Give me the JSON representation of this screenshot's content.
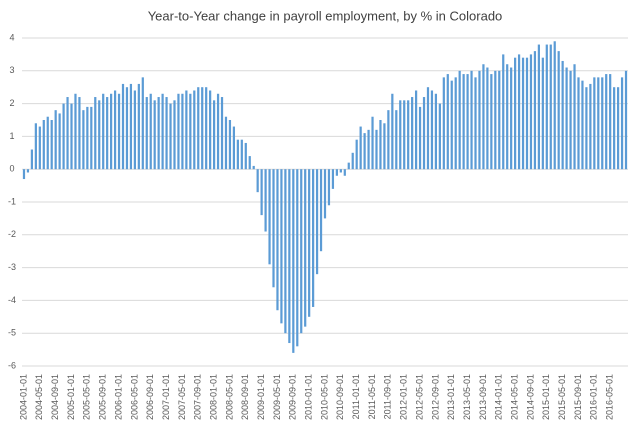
{
  "chart_data": {
    "type": "bar",
    "title": "Year-to-Year change in payroll employment, by % in Colorado",
    "categories": [
      "2004-01-01",
      null,
      null,
      null,
      "2004-05-01",
      null,
      null,
      null,
      "2004-09-01",
      null,
      null,
      null,
      "2005-01-01",
      null,
      null,
      null,
      "2005-05-01",
      null,
      null,
      null,
      "2005-09-01",
      null,
      null,
      null,
      "2006-01-01",
      null,
      null,
      null,
      "2006-05-01",
      null,
      null,
      null,
      "2006-09-01",
      null,
      null,
      null,
      "2007-01-01",
      null,
      null,
      null,
      "2007-05-01",
      null,
      null,
      null,
      "2007-09-01",
      null,
      null,
      null,
      "2008-01-01",
      null,
      null,
      null,
      "2008-05-01",
      null,
      null,
      null,
      "2008-09-01",
      null,
      null,
      null,
      "2009-01-01",
      null,
      null,
      null,
      "2009-05-01",
      null,
      null,
      null,
      "2009-09-01",
      null,
      null,
      null,
      "2010-01-01",
      null,
      null,
      null,
      "2010-05-01",
      null,
      null,
      null,
      "2010-09-01",
      null,
      null,
      null,
      "2011-01-01",
      null,
      null,
      null,
      "2011-05-01",
      null,
      null,
      null,
      "2011-09-01",
      null,
      null,
      null,
      "2012-01-01",
      null,
      null,
      null,
      "2012-05-01",
      null,
      null,
      null,
      "2012-09-01",
      null,
      null,
      null,
      "2013-01-01",
      null,
      null,
      null,
      "2013-05-01",
      null,
      null,
      null,
      "2013-09-01",
      null,
      null,
      null,
      "2014-01-01",
      null,
      null,
      null,
      "2014-05-01",
      null,
      null,
      null,
      "2014-09-01",
      null,
      null,
      null,
      "2015-01-01",
      null,
      null,
      null,
      "2015-05-01",
      null,
      null,
      null,
      "2015-09-01",
      null,
      null,
      null,
      "2016-01-01",
      null,
      null,
      null,
      "2016-05-01",
      null,
      null,
      null,
      null
    ],
    "values": [
      -0.3,
      -0.1,
      0.6,
      1.4,
      1.3,
      1.5,
      1.6,
      1.5,
      1.8,
      1.7,
      2.0,
      2.2,
      2.0,
      2.3,
      2.2,
      1.8,
      1.9,
      1.9,
      2.2,
      2.1,
      2.3,
      2.2,
      2.3,
      2.4,
      2.3,
      2.6,
      2.5,
      2.6,
      2.4,
      2.6,
      2.8,
      2.2,
      2.3,
      2.1,
      2.2,
      2.3,
      2.2,
      2.0,
      2.1,
      2.3,
      2.3,
      2.4,
      2.3,
      2.4,
      2.5,
      2.5,
      2.5,
      2.4,
      2.1,
      2.3,
      2.2,
      1.6,
      1.5,
      1.3,
      0.9,
      0.9,
      0.8,
      0.4,
      0.1,
      -0.7,
      -1.4,
      -1.9,
      -2.9,
      -3.6,
      -4.3,
      -4.7,
      -5.0,
      -5.3,
      -5.6,
      -5.4,
      -5.0,
      -4.8,
      -4.5,
      -4.2,
      -3.2,
      -2.5,
      -1.5,
      -1.1,
      -0.6,
      -0.2,
      -0.1,
      -0.2,
      0.2,
      0.5,
      0.9,
      1.3,
      1.1,
      1.2,
      1.6,
      1.2,
      1.5,
      1.4,
      1.8,
      2.3,
      1.8,
      2.1,
      2.1,
      2.1,
      2.2,
      2.4,
      1.9,
      2.2,
      2.5,
      2.4,
      2.3,
      2.0,
      2.8,
      2.9,
      2.7,
      2.8,
      3.0,
      2.9,
      2.9,
      3.0,
      2.8,
      3.0,
      3.2,
      3.1,
      2.9,
      3.0,
      3.0,
      3.5,
      3.2,
      3.1,
      3.4,
      3.5,
      3.4,
      3.4,
      3.5,
      3.6,
      3.8,
      3.4,
      3.8,
      3.8,
      3.9,
      3.6,
      3.3,
      3.1,
      3.0,
      3.2,
      2.8,
      2.7,
      2.5,
      2.6,
      2.8,
      2.8,
      2.8,
      2.9,
      2.9,
      2.5,
      2.5,
      2.8,
      3.0
    ],
    "color": "#5b9bd5",
    "ylim": [
      -6,
      4
    ],
    "yticks": [
      -6,
      -5,
      -4,
      -3,
      -2,
      -1,
      0,
      1,
      2,
      3,
      4
    ],
    "grid": true
  }
}
